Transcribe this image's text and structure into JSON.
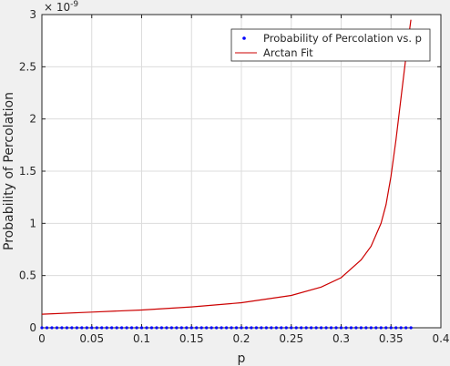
{
  "chart_data": {
    "type": "line",
    "xlabel": "p",
    "ylabel": "Probability of Percolation",
    "y_exponent_label": "× 10",
    "y_exponent_power": "-9",
    "xlim": [
      0,
      0.4
    ],
    "ylim": [
      0,
      3
    ],
    "x_ticks": [
      "0",
      "0.05",
      "0.1",
      "0.15",
      "0.2",
      "0.25",
      "0.3",
      "0.35",
      "0.4"
    ],
    "y_ticks": [
      "0",
      "0.5",
      "1",
      "1.5",
      "2",
      "2.5",
      "3"
    ],
    "grid": true,
    "legend_placement": "top-right",
    "series": [
      {
        "name": "Probability of Percolation vs. p",
        "style": "markers",
        "color": "#0000ff",
        "x_range": [
          0,
          0.37
        ],
        "x_step": 0.005,
        "y_value": 0
      },
      {
        "name": "Arctan Fit",
        "style": "line",
        "color": "#cc0000",
        "x": [
          0,
          0.05,
          0.1,
          0.15,
          0.2,
          0.25,
          0.28,
          0.3,
          0.32,
          0.33,
          0.34,
          0.345,
          0.35,
          0.355,
          0.36,
          0.365,
          0.37
        ],
        "y": [
          0.13,
          0.15,
          0.17,
          0.2,
          0.24,
          0.31,
          0.39,
          0.48,
          0.65,
          0.78,
          1.0,
          1.18,
          1.45,
          1.8,
          2.2,
          2.6,
          2.95
        ]
      }
    ]
  }
}
